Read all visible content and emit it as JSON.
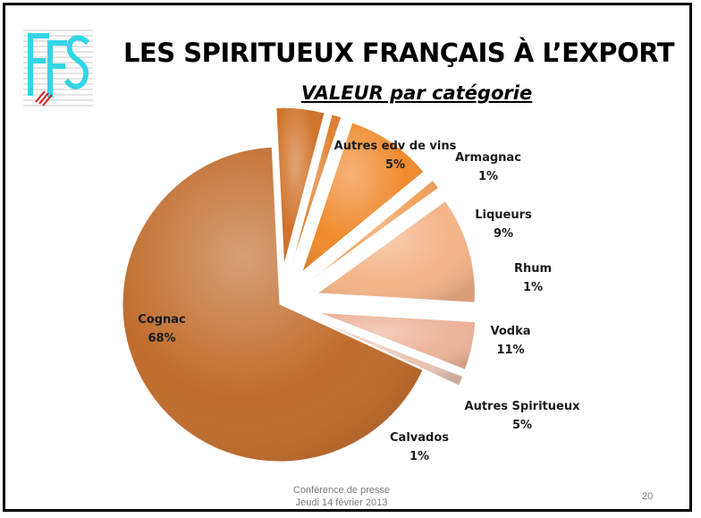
{
  "slide": {
    "title": "LES SPIRITUEUX FRANÇAIS À L’EXPORT",
    "subtitle": "VALEUR par catégorie",
    "logo_text": "FFS",
    "footer_line1": "Conférence de presse",
    "footer_line2": "Jeudi 14 février 2013",
    "page_number": "20"
  },
  "chart_data": {
    "type": "pie",
    "title": "VALEUR par catégorie",
    "exploded": true,
    "slices": [
      {
        "label": "Cognac",
        "value": 68,
        "display": "68%",
        "color": "#c06c2c"
      },
      {
        "label": "Autres edv de vins",
        "value": 5,
        "display": "5%",
        "color": "#d0722a"
      },
      {
        "label": "Armagnac",
        "value": 1,
        "display": "1%",
        "color": "#e08030"
      },
      {
        "label": "Liqueurs",
        "value": 9,
        "display": "9%",
        "color": "#f08a2e"
      },
      {
        "label": "Rhum",
        "value": 1,
        "display": "1%",
        "color": "#f4a25c"
      },
      {
        "label": "Vodka",
        "value": 11,
        "display": "11%",
        "color": "#f4b488"
      },
      {
        "label": "Autres Spiritueux",
        "value": 5,
        "display": "5%",
        "color": "#ecb49a"
      },
      {
        "label": "Calvados",
        "value": 1,
        "display": "1%",
        "color": "#e8c2b0"
      }
    ]
  }
}
